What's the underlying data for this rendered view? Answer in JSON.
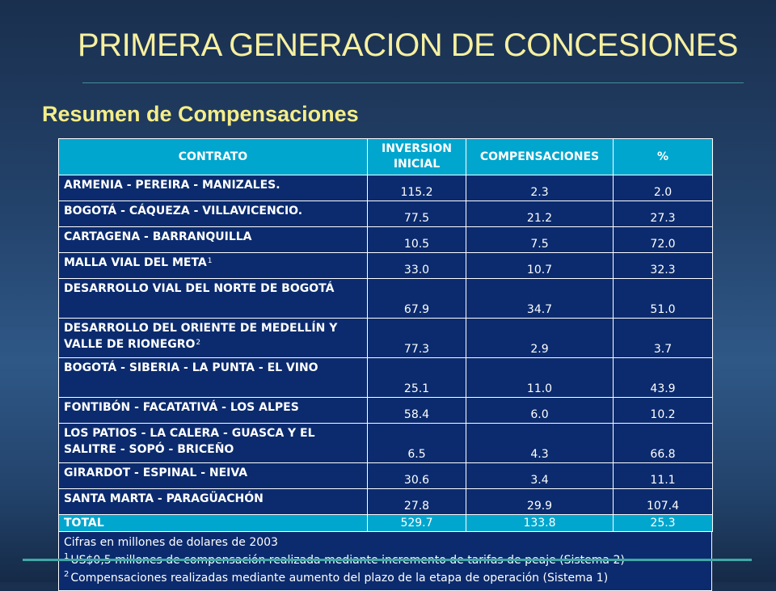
{
  "title": "PRIMERA GENERACION DE CONCESIONES",
  "subtitle": "Resumen de Compensaciones",
  "table": {
    "headers": [
      "CONTRATO",
      "INVERSION INICIAL",
      "COMPENSACIONES",
      "%"
    ],
    "rows": [
      {
        "contrato": "ARMENIA - PEREIRA - MANIZALES.",
        "note": "",
        "inversion": "115.2",
        "compensaciones": "2.3",
        "pct": "2.0"
      },
      {
        "contrato": "BOGOTÁ - CÁQUEZA - VILLAVICENCIO.",
        "note": "",
        "inversion": "77.5",
        "compensaciones": "21.2",
        "pct": "27.3"
      },
      {
        "contrato": "CARTAGENA - BARRANQUILLA",
        "note": "",
        "inversion": "10.5",
        "compensaciones": "7.5",
        "pct": "72.0"
      },
      {
        "contrato": "MALLA VIAL DEL META",
        "note": "1",
        "inversion": "33.0",
        "compensaciones": "10.7",
        "pct": "32.3"
      },
      {
        "contrato": "DESARROLLO VIAL DEL NORTE DE BOGOTÁ",
        "note": "",
        "inversion": "67.9",
        "compensaciones": "34.7",
        "pct": "51.0"
      },
      {
        "contrato": "DESARROLLO DEL ORIENTE DE MEDELLÍN Y VALLE DE RIONEGRO",
        "note": "2",
        "inversion": "77.3",
        "compensaciones": "2.9",
        "pct": "3.7"
      },
      {
        "contrato": "BOGOTÁ - SIBERIA - LA PUNTA - EL VINO",
        "note": "",
        "inversion": "25.1",
        "compensaciones": "11.0",
        "pct": "43.9"
      },
      {
        "contrato": "FONTIBÓN - FACATATIVÁ - LOS ALPES",
        "note": "",
        "inversion": "58.4",
        "compensaciones": "6.0",
        "pct": "10.2"
      },
      {
        "contrato": "LOS PATIOS - LA CALERA - GUASCA Y EL SALITRE - SOPÓ - BRICEÑO",
        "note": "",
        "inversion": "6.5",
        "compensaciones": "4.3",
        "pct": "66.8"
      },
      {
        "contrato": "GIRARDOT - ESPINAL - NEIVA",
        "note": "",
        "inversion": "30.6",
        "compensaciones": "3.4",
        "pct": "11.1"
      },
      {
        "contrato": "SANTA MARTA - PARAGÜACHÓN",
        "note": "",
        "inversion": "27.8",
        "compensaciones": "29.9",
        "pct": "107.4"
      }
    ],
    "total": {
      "label": "TOTAL",
      "inversion": "529.7",
      "compensaciones": "133.8",
      "pct": "25.3"
    }
  },
  "notes": {
    "units": "Cifras en millones de dolares de 2003",
    "footnotes": [
      {
        "mark": "1",
        "text": "US$0,5 millones de compensación realizada mediante incremento de tarifas de peaje (Sistema 2)"
      },
      {
        "mark": "2",
        "text": "Compensaciones realizadas mediante aumento del plazo de la etapa de operación (Sistema 1)"
      }
    ]
  },
  "colors": {
    "title": "#f6f0a0",
    "header_fill": "#00a6ce",
    "body_fill": "#0b2b6e",
    "rule": "#3fa9a7"
  }
}
